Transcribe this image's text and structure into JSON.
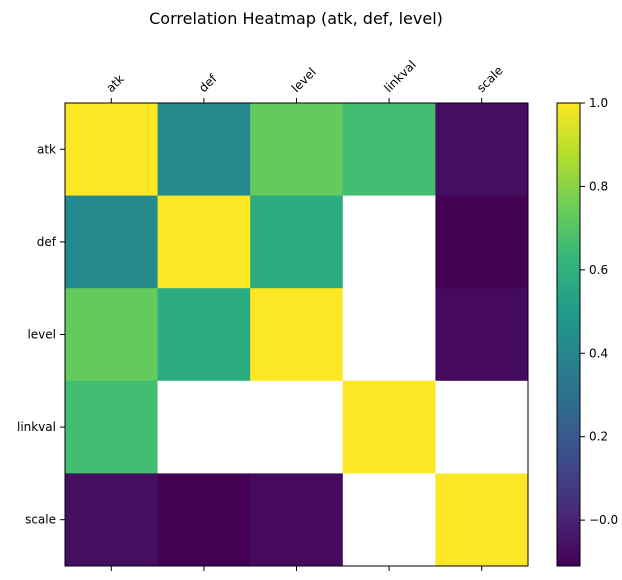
{
  "chart_data": {
    "type": "heatmap",
    "title": "Correlation Heatmap (atk, def, level)",
    "x_labels": [
      "atk",
      "def",
      "level",
      "linkval",
      "scale"
    ],
    "y_labels": [
      "atk",
      "def",
      "level",
      "linkval",
      "scale"
    ],
    "values": [
      [
        1.0,
        0.42,
        0.73,
        0.66,
        -0.07
      ],
      [
        0.42,
        1.0,
        0.58,
        null,
        -0.11
      ],
      [
        0.73,
        0.58,
        1.0,
        null,
        -0.08
      ],
      [
        0.66,
        null,
        null,
        1.0,
        null
      ],
      [
        -0.07,
        -0.11,
        -0.08,
        null,
        1.0
      ]
    ],
    "vmin": -0.11,
    "vmax": 1.0,
    "colormap": "viridis",
    "missing_color": "#ffffff",
    "colorbar_ticks": [
      -0.0,
      0.2,
      0.4,
      0.6,
      0.8,
      1.0
    ],
    "colorbar_tick_labels": [
      "−0.0",
      "0.2",
      "0.4",
      "0.6",
      "0.8",
      "1.0"
    ],
    "x_tick_position": "top",
    "grid": false
  }
}
